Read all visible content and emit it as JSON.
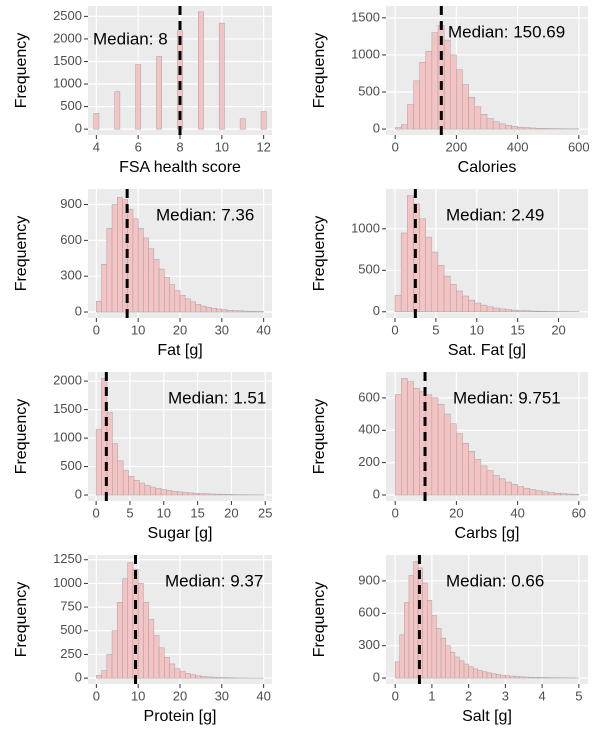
{
  "chart_data": [
    {
      "type": "histogram",
      "x_label": "FSA health score",
      "y_label": "Frequency",
      "annotation": "Median: 8",
      "median": 8,
      "color": "#f4c4c4",
      "grid": true,
      "bins": [
        3.875,
        4.125,
        4.375,
        4.625,
        4.875,
        5.125,
        5.375,
        5.625,
        5.875,
        6.125,
        6.375,
        6.625,
        6.875,
        7.125,
        7.375,
        7.625,
        7.875,
        8.125,
        8.375,
        8.625,
        8.875,
        9.125,
        9.375,
        9.625,
        9.875,
        10.125,
        10.375,
        10.625,
        10.875,
        11.125,
        11.375,
        11.625,
        11.875,
        12.125
      ],
      "counts": [
        350,
        0,
        0,
        0,
        830,
        0,
        0,
        0,
        1430,
        0,
        0,
        0,
        1610,
        0,
        0,
        0,
        2180,
        0,
        0,
        0,
        2600,
        0,
        0,
        0,
        2350,
        0,
        0,
        0,
        230,
        0,
        0,
        0,
        390
      ],
      "xlim": [
        3.6,
        12.4
      ],
      "ylim": [
        -130,
        2730
      ],
      "xticks": [
        4,
        6,
        8,
        10,
        12
      ],
      "yticks": [
        0,
        500,
        1000,
        1500,
        2000,
        2500
      ]
    },
    {
      "type": "histogram",
      "x_label": "Calories",
      "y_label": "Frequency",
      "annotation": "Median: 150.69",
      "median": 150.69,
      "color": "#f4c4c4",
      "grid": true,
      "bins": [
        0,
        20,
        40,
        60,
        80,
        100,
        120,
        140,
        160,
        180,
        200,
        220,
        240,
        260,
        280,
        300,
        320,
        340,
        360,
        380,
        400,
        420,
        440,
        460,
        480,
        500,
        520,
        540,
        560,
        580,
        600
      ],
      "counts": [
        20,
        60,
        330,
        650,
        900,
        1050,
        1300,
        1400,
        1200,
        1000,
        800,
        600,
        430,
        300,
        200,
        140,
        100,
        70,
        50,
        35,
        25,
        20,
        15,
        10,
        8,
        6,
        5,
        4,
        3,
        3
      ],
      "xlim": [
        -30,
        630
      ],
      "ylim": [
        -80,
        1660
      ],
      "xticks": [
        0,
        200,
        400,
        600
      ],
      "yticks": [
        0,
        500,
        1000,
        1500
      ]
    },
    {
      "type": "histogram",
      "x_label": "Fat [g]",
      "y_label": "Frequency",
      "annotation": "Median: 7.36",
      "median": 7.36,
      "color": "#f4c4c4",
      "grid": true,
      "bins": [
        0,
        1.25,
        2.5,
        3.75,
        5,
        6.25,
        7.5,
        8.75,
        10,
        11.25,
        12.5,
        13.75,
        15,
        16.25,
        17.5,
        18.75,
        20,
        21.25,
        22.5,
        23.75,
        25,
        26.25,
        27.5,
        28.75,
        30,
        31.25,
        32.5,
        33.75,
        35,
        36.25,
        37.5,
        38.75,
        40
      ],
      "counts": [
        90,
        400,
        700,
        900,
        960,
        940,
        860,
        780,
        700,
        620,
        530,
        440,
        360,
        290,
        230,
        180,
        140,
        110,
        85,
        65,
        50,
        40,
        32,
        25,
        20,
        15,
        12,
        10,
        8,
        6,
        5,
        4
      ],
      "xlim": [
        -2,
        42
      ],
      "ylim": [
        -50,
        1030
      ],
      "xticks": [
        0,
        10,
        20,
        30,
        40
      ],
      "yticks": [
        0,
        300,
        600,
        900
      ]
    },
    {
      "type": "histogram",
      "x_label": "Sat. Fat [g]",
      "y_label": "Frequency",
      "annotation": "Median: 2.49",
      "median": 2.49,
      "color": "#f4c4c4",
      "grid": true,
      "bins": [
        0,
        0.75,
        1.5,
        2.25,
        3,
        3.75,
        4.5,
        5.25,
        6,
        6.75,
        7.5,
        8.25,
        9,
        9.75,
        10.5,
        11.25,
        12,
        12.75,
        13.5,
        14.25,
        15,
        15.75,
        16.5,
        17.25,
        18,
        18.75,
        19.5,
        20.25,
        21,
        21.75,
        22.5
      ],
      "counts": [
        200,
        950,
        1400,
        1300,
        1120,
        900,
        720,
        560,
        430,
        330,
        250,
        190,
        140,
        105,
        80,
        60,
        45,
        35,
        27,
        20,
        15,
        12,
        9,
        7,
        5,
        4,
        3,
        3,
        2,
        2
      ],
      "xlim": [
        -1.1,
        23.6
      ],
      "ylim": [
        -75,
        1480
      ],
      "xticks": [
        0,
        5,
        10,
        15,
        20
      ],
      "yticks": [
        0,
        500,
        1000
      ]
    },
    {
      "type": "histogram",
      "x_label": "Sugar [g]",
      "y_label": "Frequency",
      "annotation": "Median: 1.51",
      "median": 1.51,
      "color": "#f4c4c4",
      "grid": true,
      "bins": [
        0,
        0.8,
        1.6,
        2.4,
        3.2,
        4,
        4.8,
        5.6,
        6.4,
        7.2,
        8,
        8.8,
        9.6,
        10.4,
        11.2,
        12,
        12.8,
        13.6,
        14.4,
        15.2,
        16,
        16.8,
        17.6,
        18.4,
        19.2,
        20,
        20.8,
        21.6,
        22.4,
        23.2,
        24,
        24.8
      ],
      "counts": [
        1150,
        2050,
        1450,
        900,
        600,
        430,
        330,
        260,
        210,
        170,
        140,
        115,
        95,
        80,
        65,
        55,
        45,
        38,
        32,
        27,
        22,
        18,
        15,
        12,
        10,
        8,
        6,
        5,
        4,
        3,
        2
      ],
      "xlim": [
        -1.2,
        26
      ],
      "ylim": [
        -105,
        2160
      ],
      "xticks": [
        0,
        5,
        10,
        15,
        20,
        25
      ],
      "yticks": [
        0,
        500,
        1000,
        1500,
        2000
      ]
    },
    {
      "type": "histogram",
      "x_label": "Carbs [g]",
      "y_label": "Frequency",
      "annotation": "Median: 9.751",
      "median": 9.751,
      "color": "#f4c4c4",
      "grid": true,
      "bins": [
        0,
        2,
        4,
        6,
        8,
        10,
        12,
        14,
        16,
        18,
        20,
        22,
        24,
        26,
        28,
        30,
        32,
        34,
        36,
        38,
        40,
        42,
        44,
        46,
        48,
        50,
        52,
        54,
        56,
        58,
        60
      ],
      "counts": [
        620,
        720,
        700,
        660,
        640,
        620,
        600,
        560,
        500,
        440,
        380,
        320,
        270,
        220,
        180,
        150,
        120,
        100,
        80,
        65,
        52,
        42,
        33,
        26,
        20,
        15,
        11,
        8,
        6,
        4
      ],
      "xlim": [
        -3,
        63
      ],
      "ylim": [
        -37,
        760
      ],
      "xticks": [
        0,
        20,
        40,
        60
      ],
      "yticks": [
        0,
        200,
        400,
        600
      ]
    },
    {
      "type": "histogram",
      "x_label": "Protein [g]",
      "y_label": "Frequency",
      "annotation": "Median: 9.37",
      "median": 9.37,
      "color": "#f4c4c4",
      "grid": true,
      "bins": [
        0,
        1.25,
        2.5,
        3.75,
        5,
        6.25,
        7.5,
        8.75,
        10,
        11.25,
        12.5,
        13.75,
        15,
        16.25,
        17.5,
        18.75,
        20,
        21.25,
        22.5,
        23.75,
        25,
        26.25,
        27.5,
        28.75,
        30,
        31.25,
        32.5,
        33.75,
        35,
        36.25,
        37.5,
        38.75,
        40
      ],
      "counts": [
        30,
        80,
        250,
        500,
        800,
        1050,
        1220,
        1150,
        1000,
        800,
        620,
        450,
        320,
        220,
        150,
        100,
        70,
        50,
        35,
        25,
        18,
        13,
        10,
        7,
        5,
        4,
        3,
        2,
        2,
        1,
        1,
        1
      ],
      "xlim": [
        -2,
        42
      ],
      "ylim": [
        -62,
        1300
      ],
      "xticks": [
        0,
        10,
        20,
        30,
        40
      ],
      "yticks": [
        0,
        250,
        500,
        750,
        1000,
        1250
      ]
    },
    {
      "type": "histogram",
      "x_label": "Salt [g]",
      "y_label": "Frequency",
      "annotation": "Median: 0.66",
      "median": 0.66,
      "color": "#f4c4c4",
      "grid": true,
      "bins": [
        0,
        0.125,
        0.25,
        0.375,
        0.5,
        0.625,
        0.75,
        0.875,
        1,
        1.125,
        1.25,
        1.375,
        1.5,
        1.625,
        1.75,
        1.875,
        2,
        2.125,
        2.25,
        2.375,
        2.5,
        2.625,
        2.75,
        2.875,
        3,
        3.125,
        3.25,
        3.375,
        3.5,
        3.625,
        3.75,
        3.875,
        4,
        4.125,
        4.25,
        4.375,
        4.5,
        4.625,
        4.75,
        4.875,
        5
      ],
      "counts": [
        150,
        400,
        700,
        950,
        1080,
        1020,
        880,
        720,
        580,
        460,
        370,
        300,
        240,
        195,
        160,
        130,
        105,
        85,
        70,
        58,
        48,
        40,
        33,
        27,
        22,
        18,
        15,
        12,
        10,
        8,
        7,
        6,
        5,
        4,
        3,
        3,
        2,
        2,
        2,
        1
      ],
      "xlim": [
        -0.25,
        5.25
      ],
      "ylim": [
        -55,
        1140
      ],
      "xticks": [
        0,
        1,
        2,
        3,
        4,
        5
      ],
      "yticks": [
        0,
        300,
        600,
        900
      ]
    }
  ]
}
